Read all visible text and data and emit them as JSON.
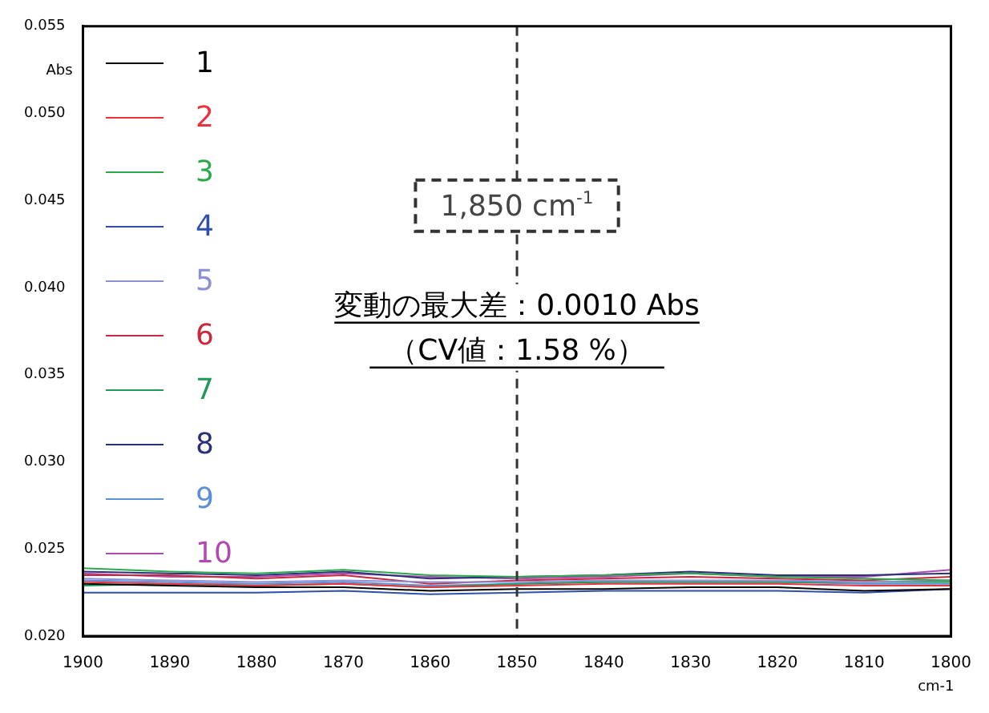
{
  "chart_data": {
    "type": "line",
    "ylabel": "Abs",
    "xlabel": "cm-1",
    "x": [
      1900,
      1890,
      1880,
      1870,
      1860,
      1850,
      1840,
      1830,
      1820,
      1810,
      1800
    ],
    "xlim": [
      1900,
      1800
    ],
    "xticks": [
      1900,
      1890,
      1880,
      1870,
      1860,
      1850,
      1840,
      1830,
      1820,
      1810,
      1800
    ],
    "ylim": [
      0.02,
      0.055
    ],
    "yticks": [
      {
        "value": 0.02,
        "label": "0.020"
      },
      {
        "value": 0.025,
        "label": "0.025"
      },
      {
        "value": 0.03,
        "label": "0.030"
      },
      {
        "value": 0.035,
        "label": "0.035"
      },
      {
        "value": 0.04,
        "label": "0.040"
      },
      {
        "value": 0.045,
        "label": "0.045"
      },
      {
        "value": 0.05,
        "label": "0.050"
      },
      {
        "value": 0.055,
        "label": "0.055"
      }
    ],
    "series": [
      {
        "name": "1",
        "color": "#000000",
        "values": [
          0.023,
          0.0229,
          0.0228,
          0.0228,
          0.0226,
          0.0227,
          0.0227,
          0.0228,
          0.0228,
          0.0226,
          0.0227
        ]
      },
      {
        "name": "2",
        "color": "#e8323c",
        "values": [
          0.0231,
          0.023,
          0.0229,
          0.023,
          0.0228,
          0.0229,
          0.023,
          0.023,
          0.023,
          0.0229,
          0.0229
        ]
      },
      {
        "name": "3",
        "color": "#2aa84a",
        "values": [
          0.0239,
          0.0237,
          0.0236,
          0.0238,
          0.0235,
          0.0234,
          0.0235,
          0.0236,
          0.0234,
          0.0233,
          0.0232
        ]
      },
      {
        "name": "4",
        "color": "#2f4fa8",
        "values": [
          0.0225,
          0.0225,
          0.0225,
          0.0226,
          0.0224,
          0.0225,
          0.0226,
          0.0226,
          0.0226,
          0.0225,
          0.0227
        ]
      },
      {
        "name": "5",
        "color": "#8a8fd8",
        "values": [
          0.0233,
          0.0232,
          0.0231,
          0.0232,
          0.0231,
          0.0231,
          0.0232,
          0.0232,
          0.0232,
          0.0231,
          0.0232
        ]
      },
      {
        "name": "6",
        "color": "#c8283c",
        "values": [
          0.0235,
          0.0235,
          0.0233,
          0.0235,
          0.023,
          0.0232,
          0.0233,
          0.0234,
          0.0233,
          0.0232,
          0.0234
        ]
      },
      {
        "name": "7",
        "color": "#1f9a5a",
        "values": [
          0.0229,
          0.023,
          0.0229,
          0.023,
          0.0228,
          0.023,
          0.0231,
          0.0231,
          0.0231,
          0.0231,
          0.0231
        ]
      },
      {
        "name": "8",
        "color": "#28307a",
        "values": [
          0.0237,
          0.0236,
          0.0235,
          0.0237,
          0.0233,
          0.0234,
          0.0235,
          0.0237,
          0.0235,
          0.0235,
          0.0236
        ]
      },
      {
        "name": "9",
        "color": "#5b8fd8",
        "values": [
          0.0232,
          0.0231,
          0.023,
          0.0231,
          0.0229,
          0.023,
          0.0231,
          0.0231,
          0.0231,
          0.023,
          0.023
        ]
      },
      {
        "name": "10",
        "color": "#b04ab0",
        "values": [
          0.0236,
          0.0234,
          0.0234,
          0.0236,
          0.0234,
          0.0233,
          0.0234,
          0.0236,
          0.0234,
          0.0234,
          0.0238
        ]
      }
    ],
    "ref_lines": [
      {
        "axis": "x",
        "value": 1850,
        "label": "1,850 cm$^{-1}$",
        "color": "#333333",
        "line_style": "dashed"
      }
    ],
    "annotations": [
      "変動の最大差：0.0010 Abs",
      "（CV値：1.58 %）"
    ],
    "legend": "top left",
    "grid": false,
    "marker": "none",
    "line_style": "solid"
  }
}
